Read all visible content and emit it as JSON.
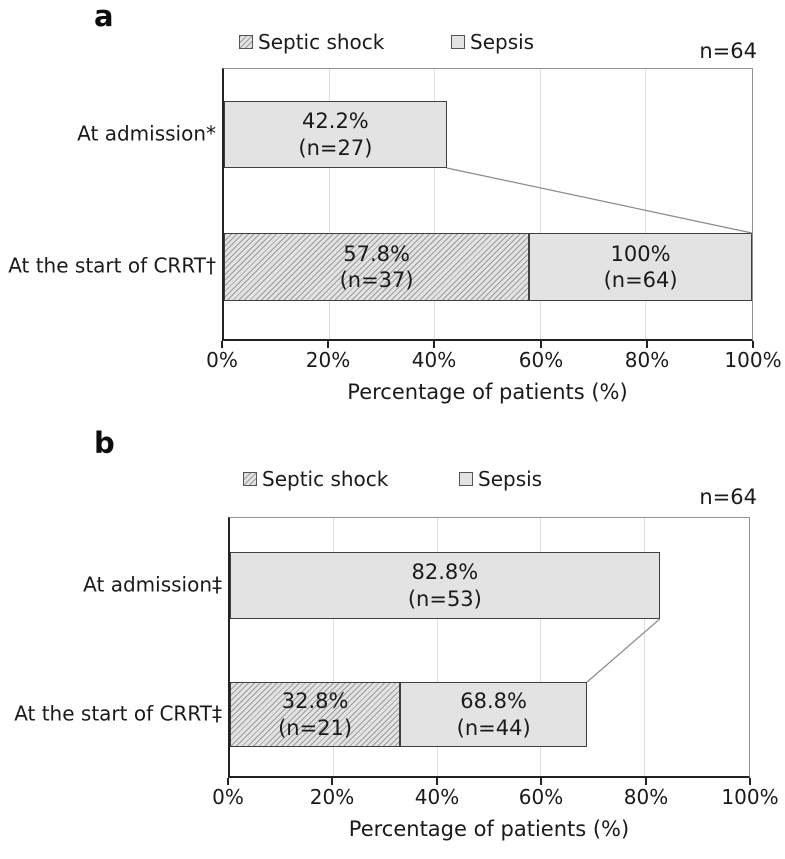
{
  "colors": {
    "bar_fill": "#e3e3e3",
    "bar_border": "#3f3f3f",
    "hatch_line": "#9b9b9b",
    "axis_line": "#222222",
    "plot_frame": "#929292",
    "gridline": "#dedede",
    "connector": "#8a8a8a",
    "text": "#1a1a1a"
  },
  "chart_data": [
    {
      "type": "bar",
      "orientation": "horizontal",
      "stacked": true,
      "grid": true,
      "legend_position": "top",
      "panel_label": "a",
      "sample_size": "n=64",
      "legend": [
        {
          "label": "Septic shock",
          "pattern": "hatch"
        },
        {
          "label": "Sepsis",
          "pattern": "plain"
        }
      ],
      "x_axis": {
        "title": "Percentage of patients (%)",
        "min": 0,
        "max": 100,
        "tick_values": [
          0,
          20,
          40,
          60,
          80,
          100
        ],
        "tick_labels": [
          "0%",
          "20%",
          "40%",
          "60%",
          "80%",
          "100%"
        ]
      },
      "rows": [
        {
          "category": "At admission*",
          "segments": [
            {
              "series": "Sepsis",
              "pattern": "plain",
              "start": 0,
              "end": 42.2,
              "label": "42.2%",
              "sublabel": "(n=27)"
            }
          ]
        },
        {
          "category": "At the start of CRRT†",
          "segments": [
            {
              "series": "Septic shock",
              "pattern": "hatch",
              "start": 0,
              "end": 57.8,
              "label": "57.8%",
              "sublabel": "(n=37)"
            },
            {
              "series": "Sepsis",
              "pattern": "plain",
              "start": 57.8,
              "end": 100,
              "label": "100%",
              "sublabel": "(n=64)"
            }
          ]
        }
      ],
      "connector": {
        "from_row": 0,
        "from_pct": 42.2,
        "to_row": 1,
        "to_pct": 100
      }
    },
    {
      "type": "bar",
      "orientation": "horizontal",
      "stacked": true,
      "grid": true,
      "legend_position": "top",
      "panel_label": "b",
      "sample_size": "n=64",
      "legend": [
        {
          "label": "Septic shock",
          "pattern": "hatch"
        },
        {
          "label": "Sepsis",
          "pattern": "plain"
        }
      ],
      "x_axis": {
        "title": "Percentage of patients (%)",
        "min": 0,
        "max": 100,
        "tick_values": [
          0,
          20,
          40,
          60,
          80,
          100
        ],
        "tick_labels": [
          "0%",
          "20%",
          "40%",
          "60%",
          "80%",
          "100%"
        ]
      },
      "rows": [
        {
          "category": "At admission‡",
          "segments": [
            {
              "series": "Sepsis",
              "pattern": "plain",
              "start": 0,
              "end": 82.8,
              "label": "82.8%",
              "sublabel": "(n=53)"
            }
          ]
        },
        {
          "category": "At the start of CRRT‡",
          "segments": [
            {
              "series": "Septic shock",
              "pattern": "hatch",
              "start": 0,
              "end": 32.8,
              "label": "32.8%",
              "sublabel": "(n=21)"
            },
            {
              "series": "Sepsis",
              "pattern": "plain",
              "start": 32.8,
              "end": 68.8,
              "label": "68.8%",
              "sublabel": "(n=44)"
            }
          ]
        }
      ],
      "connector": {
        "from_row": 0,
        "from_pct": 82.8,
        "to_row": 1,
        "to_pct": 68.8
      }
    }
  ]
}
